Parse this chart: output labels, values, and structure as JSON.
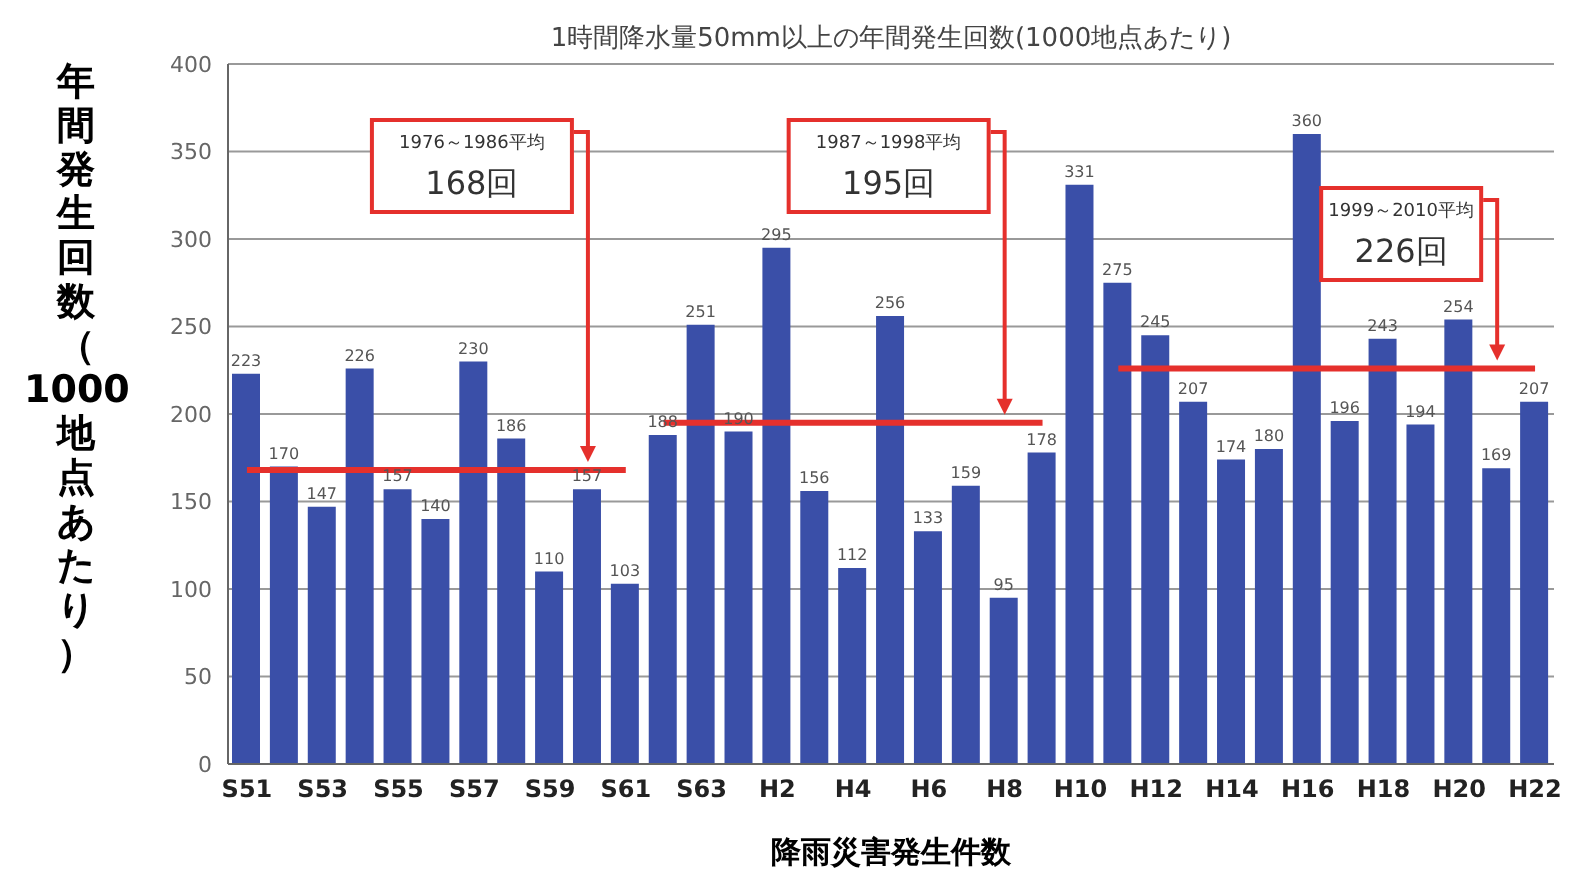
{
  "chart_data": {
    "type": "bar",
    "title": "1時間降水量50mm以上の年間発生回数(1000地点あたり)",
    "xlabel": "降雨災害発生件数",
    "ylabel": "年間発生回数（1000地点あたり）",
    "categories": [
      "S51",
      null,
      "S53",
      null,
      "S55",
      null,
      "S57",
      null,
      "S59",
      null,
      "S61",
      null,
      "S63",
      null,
      "H2",
      null,
      "H4",
      null,
      "H6",
      null,
      "H8",
      null,
      "H10",
      null,
      "H12",
      null,
      "H14",
      null,
      "H16",
      null,
      "H18",
      null,
      "H20",
      null,
      "H22"
    ],
    "series": [
      {
        "color": "#3a4fa8",
        "values": [
          223,
          170,
          147,
          226,
          157,
          140,
          230,
          186,
          110,
          157,
          103,
          188,
          251,
          190,
          295,
          156,
          112,
          256,
          133,
          159,
          95,
          178,
          331,
          275,
          245,
          207,
          174,
          180,
          360,
          196,
          243,
          194,
          254,
          169,
          207
        ],
        "value_labels": [
          "223",
          "170",
          "147",
          "226",
          "157",
          "140",
          "230",
          "186",
          "110",
          "157",
          "103",
          "188",
          "251",
          "190",
          "295",
          "156",
          "112",
          "256",
          "133",
          "159",
          "95",
          "178",
          "331",
          "275",
          "245",
          "207",
          "174",
          "180",
          "360",
          "196",
          "243",
          "194",
          "254",
          "169",
          "207"
        ]
      },
      {
        "type": "line",
        "color": "#e5302c",
        "values": [
          168,
          168,
          168,
          168,
          168,
          168,
          168,
          168,
          168,
          168,
          168,
          null,
          null,
          null,
          null,
          null,
          null,
          null,
          null,
          null,
          null,
          null,
          null,
          null,
          null,
          null,
          null,
          null,
          null,
          null,
          null,
          null,
          null,
          null,
          null
        ]
      },
      {
        "type": "line",
        "color": "#e5302c",
        "values": [
          null,
          null,
          null,
          null,
          null,
          null,
          null,
          null,
          null,
          null,
          null,
          195,
          195,
          195,
          195,
          195,
          195,
          195,
          195,
          195,
          195,
          195,
          null,
          null,
          null,
          null,
          null,
          null,
          null,
          null,
          null,
          null,
          null,
          null,
          null
        ]
      },
      {
        "type": "line",
        "color": "#e5302c",
        "values": [
          null,
          null,
          null,
          null,
          null,
          null,
          null,
          null,
          null,
          null,
          null,
          null,
          null,
          null,
          null,
          null,
          null,
          null,
          null,
          null,
          null,
          null,
          null,
          226,
          226,
          226,
          226,
          226,
          226,
          226,
          226,
          226,
          226,
          226,
          226
        ]
      }
    ],
    "annotations": [
      "1976～1986平均",
      "168回",
      "1987～1998平均",
      "195回",
      "1999～2010平均",
      "226回"
    ],
    "ylim": [
      0,
      400
    ],
    "yticks": [
      0,
      50,
      100,
      150,
      200,
      250,
      300,
      350,
      400
    ],
    "grid": "y"
  }
}
